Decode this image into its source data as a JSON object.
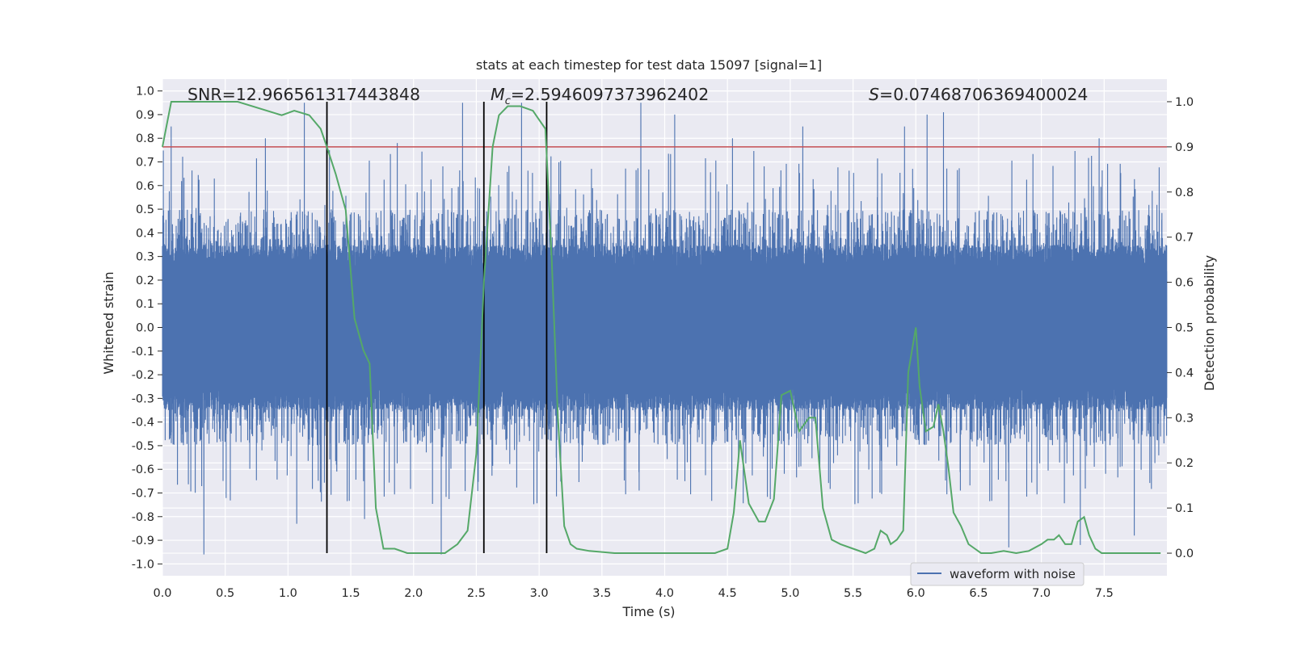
{
  "chart_data": {
    "type": "line",
    "title": "stats at each timestep for test data 15097 [signal=1]",
    "xlabel": "Time (s)",
    "ylabel": "Whitened strain",
    "y2label": "Detection probability",
    "xlim": [
      0,
      8
    ],
    "ylim": [
      -1.05,
      1.05
    ],
    "y2lim": [
      -0.05,
      1.05
    ],
    "x_ticks": [
      "0.0",
      "0.5",
      "1.0",
      "1.5",
      "2.0",
      "2.5",
      "3.0",
      "3.5",
      "4.0",
      "4.5",
      "5.0",
      "5.5",
      "6.0",
      "6.5",
      "7.0",
      "7.5"
    ],
    "y_ticks": [
      "1.0",
      "0.9",
      "0.8",
      "0.7",
      "0.6",
      "0.5",
      "0.4",
      "0.3",
      "0.2",
      "0.1",
      "0.0",
      "-0.1",
      "-0.2",
      "-0.3",
      "-0.4",
      "-0.5",
      "-0.6",
      "-0.7",
      "-0.8",
      "-0.9",
      "-1.0"
    ],
    "y2_ticks": [
      "1.0",
      "0.9",
      "0.8",
      "0.7",
      "0.6",
      "0.5",
      "0.4",
      "0.3",
      "0.2",
      "0.1",
      "0.0"
    ],
    "grid": true,
    "legend": {
      "position": "lower-right",
      "entries": [
        "waveform with noise"
      ]
    },
    "annotations": {
      "snr": "SNR=12.966561317443848",
      "mc": "=2.5946097373962402",
      "mc_symbol": "M",
      "mc_subscript": "c",
      "s": "=0.07468706369400024",
      "s_symbol": "S"
    },
    "threshold": {
      "value": 0.9,
      "axis": "right",
      "color": "#c44e52"
    },
    "vertical_lines": [
      1.31,
      2.56,
      3.06
    ],
    "series": [
      {
        "name": "waveform with noise",
        "axis": "left",
        "color": "#4c72b0",
        "sample_rate_hz": 2048,
        "noise_envelope": 0.35,
        "peak_times": [
          0.07,
          0.33,
          0.82,
          1.07,
          1.13,
          1.33,
          1.61,
          1.87,
          2.22,
          2.39,
          2.56,
          2.86,
          3.06,
          3.81,
          4.08,
          4.54,
          5.1,
          5.91,
          6.09,
          6.22,
          6.74,
          7.31,
          7.46,
          7.74
        ],
        "peak_values": [
          0.85,
          -0.96,
          0.8,
          -0.83,
          0.95,
          0.75,
          -0.81,
          0.78,
          -0.96,
          0.95,
          0.75,
          0.95,
          -0.95,
          0.95,
          0.9,
          0.8,
          0.85,
          0.85,
          0.9,
          0.91,
          -0.93,
          -0.92,
          0.8,
          -0.88
        ]
      },
      {
        "name": "",
        "axis": "right",
        "color": "#55a868",
        "x": [
          0.0,
          0.07,
          0.25,
          0.6,
          0.95,
          1.05,
          1.17,
          1.26,
          1.31,
          1.38,
          1.46,
          1.53,
          1.6,
          1.65,
          1.7,
          1.76,
          1.85,
          1.95,
          2.05,
          2.25,
          2.35,
          2.43,
          2.5,
          2.56,
          2.63,
          2.68,
          2.75,
          2.85,
          2.95,
          3.0,
          3.05,
          3.1,
          3.15,
          3.2,
          3.25,
          3.3,
          3.4,
          3.6,
          3.8,
          4.0,
          4.2,
          4.4,
          4.5,
          4.55,
          4.6,
          4.67,
          4.75,
          4.8,
          4.87,
          4.93,
          5.0,
          5.07,
          5.15,
          5.2,
          5.26,
          5.33,
          5.4,
          5.5,
          5.6,
          5.67,
          5.72,
          5.77,
          5.8,
          5.85,
          5.9,
          5.94,
          6.0,
          6.03,
          6.08,
          6.14,
          6.18,
          6.22,
          6.26,
          6.3,
          6.36,
          6.42,
          6.47,
          6.52,
          6.6,
          6.7,
          6.8,
          6.9,
          7.0,
          7.05,
          7.1,
          7.14,
          7.19,
          7.24,
          7.29,
          7.34,
          7.38,
          7.43,
          7.48,
          7.53,
          7.58,
          7.65,
          7.75,
          7.95
        ],
        "y": [
          0.9,
          1.0,
          1.0,
          1.0,
          0.97,
          0.98,
          0.97,
          0.94,
          0.9,
          0.84,
          0.76,
          0.52,
          0.45,
          0.42,
          0.1,
          0.01,
          0.01,
          0.0,
          0.0,
          0.0,
          0.02,
          0.05,
          0.22,
          0.6,
          0.9,
          0.97,
          0.99,
          0.99,
          0.98,
          0.96,
          0.94,
          0.65,
          0.3,
          0.06,
          0.02,
          0.01,
          0.005,
          0.0,
          0.0,
          0.0,
          0.0,
          0.0,
          0.01,
          0.09,
          0.25,
          0.11,
          0.07,
          0.07,
          0.12,
          0.35,
          0.36,
          0.27,
          0.3,
          0.3,
          0.1,
          0.03,
          0.02,
          0.01,
          0.0,
          0.01,
          0.05,
          0.04,
          0.02,
          0.03,
          0.05,
          0.4,
          0.5,
          0.37,
          0.27,
          0.28,
          0.33,
          0.27,
          0.19,
          0.09,
          0.06,
          0.02,
          0.01,
          0.0,
          0.0,
          0.005,
          0.0,
          0.005,
          0.02,
          0.03,
          0.03,
          0.04,
          0.02,
          0.02,
          0.07,
          0.08,
          0.04,
          0.01,
          0.0,
          0.0,
          0.0,
          0.0,
          0.0,
          0.0
        ]
      }
    ]
  }
}
